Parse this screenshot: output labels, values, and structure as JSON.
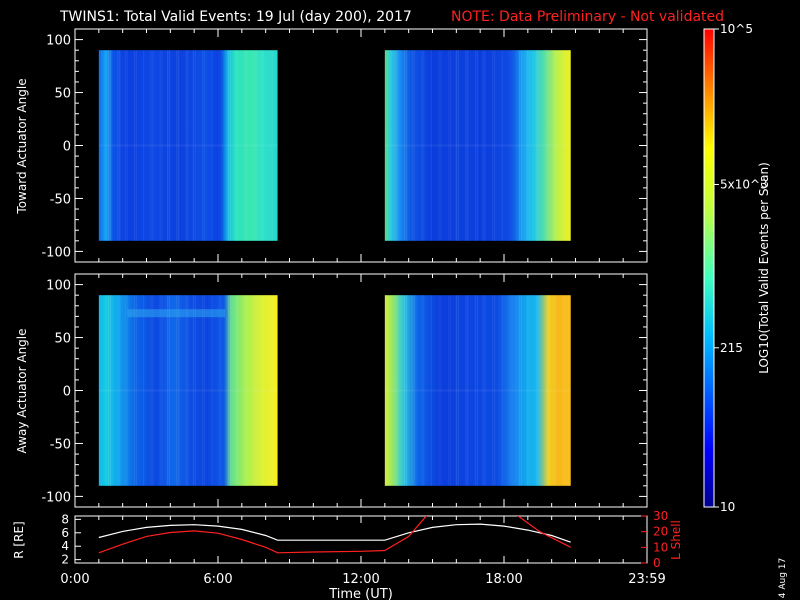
{
  "header": {
    "title": "TWINS1: Total Valid Events: 19 Jul (day 200), 2017",
    "note": "NOTE: Data Preliminary - Not validated"
  },
  "date_stamp": "4 Aug 17",
  "colors": {
    "background": "#000000",
    "axes": "#ffffff",
    "note": "#ff2020",
    "lshell": "#ff2020",
    "radius": "#ffffff"
  },
  "chart_data": [
    {
      "type": "heatmap",
      "ylabel": "Toward Actuator Angle",
      "ylim": [
        -110,
        110
      ],
      "yticks": [
        "100",
        "50",
        "0",
        "-50",
        "-100"
      ],
      "xlim": [
        0,
        24
      ],
      "data_blocks": [
        {
          "x_start_hr": 1.0,
          "x_end_hr": 8.5,
          "y_range": [
            -90,
            90
          ],
          "profile": "toward-1"
        },
        {
          "x_start_hr": 13.0,
          "x_end_hr": 20.8,
          "y_range": [
            -90,
            90
          ],
          "profile": "toward-2"
        }
      ],
      "colorbar": {
        "label": "LOG10(Total Valid Events per Scan)",
        "scale": "log",
        "range": [
          10,
          100000
        ],
        "tick_labels": [
          "10^5",
          "5x10^3",
          "215",
          "10"
        ]
      }
    },
    {
      "type": "heatmap",
      "ylabel": "Away Actuator Angle",
      "ylim": [
        -110,
        110
      ],
      "yticks": [
        "100",
        "50",
        "0",
        "-50",
        "-100"
      ],
      "xlim": [
        0,
        24
      ],
      "data_blocks": [
        {
          "x_start_hr": 1.0,
          "x_end_hr": 8.5,
          "y_range": [
            -90,
            90
          ],
          "profile": "away-1"
        },
        {
          "x_start_hr": 13.0,
          "x_end_hr": 20.8,
          "y_range": [
            -90,
            90
          ],
          "profile": "away-2"
        }
      ]
    },
    {
      "type": "line",
      "xlabel": "Time (UT)",
      "xticks": [
        "0:00",
        "6:00",
        "12:00",
        "18:00",
        "23:59"
      ],
      "xtick_hours": [
        0,
        6,
        12,
        18,
        24
      ],
      "ylabel_left": "R [RE]",
      "yticks_left": [
        "8",
        "6",
        "4",
        "2"
      ],
      "ylim_left": [
        1.5,
        8.5
      ],
      "ylabel_right": "L Shell",
      "yticks_right": [
        "30",
        "20",
        "10",
        "0"
      ],
      "ylim_right": [
        0,
        30
      ],
      "series": [
        {
          "axis": "left",
          "x": [
            1.0,
            2.0,
            3.0,
            4.0,
            5.0,
            6.0,
            7.0,
            8.0,
            8.5,
            13.0,
            14.0,
            15.0,
            16.0,
            17.0,
            18.0,
            19.0,
            20.0,
            20.8
          ],
          "y": [
            5.3,
            6.2,
            6.8,
            7.1,
            7.2,
            7.0,
            6.5,
            5.6,
            4.9,
            4.9,
            6.0,
            6.8,
            7.2,
            7.3,
            7.0,
            6.4,
            5.6,
            4.6
          ]
        },
        {
          "axis": "right",
          "x": [
            1.0,
            2.0,
            3.0,
            4.0,
            5.0,
            6.0,
            7.0,
            8.0,
            8.5,
            10.0,
            12.0,
            13.0,
            14.0,
            14.8,
            18.5,
            19.5,
            20.8
          ],
          "y": [
            6.5,
            12.0,
            17.0,
            19.5,
            20.5,
            19.0,
            15.0,
            10.0,
            6.5,
            7.0,
            7.5,
            8.0,
            17.0,
            31.0,
            31.0,
            20.0,
            10.0
          ]
        }
      ]
    }
  ]
}
